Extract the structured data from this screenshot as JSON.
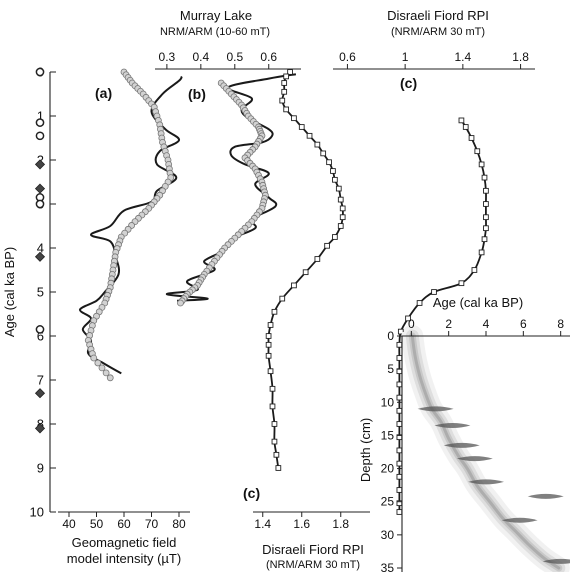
{
  "chart_data": {
    "type": "line",
    "left_axis": {
      "label": "Age (cal ka BP)",
      "range": [
        0,
        10
      ],
      "ticks": [
        "0",
        "1",
        "2",
        "3",
        "4",
        "5",
        "6",
        "7",
        "8",
        "9",
        "10"
      ],
      "inverted": true
    },
    "panels": [
      {
        "id": "a",
        "label": "(a)",
        "x_axis_position": "bottom",
        "xlabel": [
          "Geomagnetic field",
          "model intensity (µT)"
        ],
        "xlim": [
          36,
          84
        ],
        "ticks": [
          40,
          50,
          60,
          70,
          80
        ],
        "series": [
          {
            "style": "smooth",
            "color": "#1a1a1a",
            "points": [
              [
                81,
                0.1
              ],
              [
                80,
                0.2
              ],
              [
                74,
                0.5
              ],
              [
                70,
                0.9
              ],
              [
                75,
                1.3
              ],
              [
                80,
                1.55
              ],
              [
                73,
                1.8
              ],
              [
                72,
                2.1
              ],
              [
                79,
                2.4
              ],
              [
                72,
                2.7
              ],
              [
                70,
                2.95
              ],
              [
                60,
                3.15
              ],
              [
                55,
                3.5
              ],
              [
                48,
                3.7
              ],
              [
                55,
                3.85
              ],
              [
                57,
                4.2
              ],
              [
                58,
                4.6
              ],
              [
                53,
                5.0
              ],
              [
                50,
                5.2
              ],
              [
                44,
                5.4
              ],
              [
                48,
                5.6
              ],
              [
                45,
                5.85
              ],
              [
                48,
                6.1
              ],
              [
                47,
                6.4
              ],
              [
                52,
                6.6
              ],
              [
                59,
                6.85
              ]
            ]
          },
          {
            "style": "dots",
            "color": "#777777",
            "fill": "#d2d2d2",
            "points": [
              [
                60,
                0
              ],
              [
                63,
                0.25
              ],
              [
                67,
                0.5
              ],
              [
                71,
                0.8
              ],
              [
                73,
                1.2
              ],
              [
                74,
                1.6
              ],
              [
                76,
                2.0
              ],
              [
                77,
                2.4
              ],
              [
                73,
                2.8
              ],
              [
                69,
                3.1
              ],
              [
                64,
                3.4
              ],
              [
                59,
                3.75
              ],
              [
                57,
                4.1
              ],
              [
                56,
                4.5
              ],
              [
                55,
                4.9
              ],
              [
                53,
                5.25
              ],
              [
                49,
                5.65
              ],
              [
                47,
                6.1
              ],
              [
                49,
                6.5
              ],
              [
                55,
                6.95
              ]
            ]
          }
        ],
        "age_markers": {
          "circles": [
            0,
            1.15,
            1.45,
            2.85,
            3.0,
            5.85
          ],
          "diamonds": [
            2.1,
            2.65,
            4.2,
            7.3,
            8.1
          ]
        }
      },
      {
        "id": "b",
        "label": "(b)",
        "x_axis_position": "top",
        "title": "Murray Lake",
        "xlabel": "NRM/ARM (10-60 mT)",
        "xlim": [
          0.265,
          0.695
        ],
        "ticks": [
          0.3,
          0.4,
          0.5,
          0.6
        ],
        "series": [
          {
            "style": "smooth",
            "color": "#1a1a1a",
            "points": [
              [
                0.68,
                0.05
              ],
              [
                0.6,
                0.15
              ],
              [
                0.48,
                0.35
              ],
              [
                0.55,
                0.6
              ],
              [
                0.52,
                0.85
              ],
              [
                0.54,
                1.05
              ],
              [
                0.6,
                1.3
              ],
              [
                0.61,
                1.45
              ],
              [
                0.58,
                1.6
              ],
              [
                0.5,
                1.7
              ],
              [
                0.49,
                1.9
              ],
              [
                0.53,
                2.1
              ],
              [
                0.6,
                2.3
              ],
              [
                0.56,
                2.55
              ],
              [
                0.6,
                2.85
              ],
              [
                0.62,
                3.05
              ],
              [
                0.55,
                3.35
              ],
              [
                0.56,
                3.55
              ],
              [
                0.49,
                3.8
              ],
              [
                0.47,
                4.05
              ],
              [
                0.41,
                4.3
              ],
              [
                0.44,
                4.5
              ],
              [
                0.36,
                4.75
              ],
              [
                0.39,
                4.95
              ],
              [
                0.3,
                5.05
              ],
              [
                0.42,
                5.15
              ],
              [
                0.33,
                5.2
              ]
            ]
          },
          {
            "style": "dots",
            "color": "#777777",
            "fill": "#d2d2d2",
            "points": [
              [
                0.46,
                0.25
              ],
              [
                0.49,
                0.5
              ],
              [
                0.52,
                0.75
              ],
              [
                0.54,
                1.0
              ],
              [
                0.57,
                1.25
              ],
              [
                0.58,
                1.45
              ],
              [
                0.56,
                1.7
              ],
              [
                0.53,
                1.95
              ],
              [
                0.56,
                2.2
              ],
              [
                0.58,
                2.5
              ],
              [
                0.59,
                2.8
              ],
              [
                0.58,
                3.1
              ],
              [
                0.55,
                3.4
              ],
              [
                0.51,
                3.7
              ],
              [
                0.47,
                4.0
              ],
              [
                0.44,
                4.3
              ],
              [
                0.41,
                4.6
              ],
              [
                0.39,
                4.85
              ],
              [
                0.36,
                5.05
              ],
              [
                0.34,
                5.25
              ]
            ]
          }
        ]
      },
      {
        "id": "c-top",
        "label": "(c)",
        "x_axis_position": "top",
        "title": "Disraeli Fiord RPI",
        "xlabel": "(NRM/ARM 30 mT)",
        "xlim": [
          0.5,
          1.9
        ],
        "ticks": [
          0.6,
          1.0,
          1.4,
          1.8
        ],
        "series": [
          {
            "style": "line-squares",
            "color": "#1a1a1a",
            "points": [
              [
                1.39,
                1.1
              ],
              [
                1.42,
                1.25
              ],
              [
                1.46,
                1.5
              ],
              [
                1.5,
                1.8
              ],
              [
                1.53,
                2.1
              ],
              [
                1.55,
                2.4
              ],
              [
                1.56,
                2.7
              ],
              [
                1.56,
                3.0
              ],
              [
                1.56,
                3.3
              ],
              [
                1.56,
                3.55
              ],
              [
                1.55,
                3.8
              ],
              [
                1.53,
                4.1
              ],
              [
                1.48,
                4.5
              ],
              [
                1.39,
                4.8
              ],
              [
                1.2,
                5.0
              ],
              [
                1.1,
                5.25
              ],
              [
                1.02,
                5.6
              ],
              [
                0.97,
                5.9
              ],
              [
                0.96,
                6.2
              ],
              [
                0.96,
                6.5
              ],
              [
                0.96,
                6.8
              ],
              [
                0.96,
                7.1
              ],
              [
                0.96,
                7.4
              ],
              [
                0.96,
                7.7
              ],
              [
                0.96,
                8.0
              ],
              [
                0.96,
                8.3
              ],
              [
                0.96,
                8.6
              ],
              [
                0.96,
                8.9
              ],
              [
                0.96,
                9.2
              ],
              [
                0.96,
                9.5
              ],
              [
                0.96,
                9.8
              ],
              [
                0.96,
                10.0
              ]
            ]
          }
        ]
      },
      {
        "id": "c-bottom",
        "label": "(c)",
        "x_axis_position": "bottom",
        "xlabel": [
          "Disraeli Fiord RPI",
          "(NRM/ARM 30 mT)"
        ],
        "xlim": [
          1.35,
          1.95
        ],
        "ticks": [
          1.4,
          1.6,
          1.8
        ],
        "series": [
          {
            "style": "line-squares",
            "color": "#1a1a1a",
            "points": [
              [
                1.54,
                0.0
              ],
              [
                1.52,
                0.1
              ],
              [
                1.51,
                0.25
              ],
              [
                1.51,
                0.45
              ],
              [
                1.5,
                0.65
              ],
              [
                1.52,
                0.85
              ],
              [
                1.56,
                1.05
              ],
              [
                1.6,
                1.25
              ],
              [
                1.64,
                1.45
              ],
              [
                1.68,
                1.65
              ],
              [
                1.71,
                1.85
              ],
              [
                1.74,
                2.05
              ],
              [
                1.76,
                2.25
              ],
              [
                1.77,
                2.45
              ],
              [
                1.79,
                2.65
              ],
              [
                1.8,
                2.9
              ],
              [
                1.81,
                3.1
              ],
              [
                1.81,
                3.3
              ],
              [
                1.8,
                3.5
              ],
              [
                1.77,
                3.75
              ],
              [
                1.73,
                3.95
              ],
              [
                1.68,
                4.25
              ],
              [
                1.62,
                4.55
              ],
              [
                1.56,
                4.85
              ],
              [
                1.5,
                5.15
              ],
              [
                1.46,
                5.45
              ],
              [
                1.44,
                5.75
              ],
              [
                1.43,
                6.0
              ],
              [
                1.43,
                6.2
              ],
              [
                1.43,
                6.45
              ],
              [
                1.44,
                6.8
              ],
              [
                1.45,
                7.2
              ],
              [
                1.45,
                7.6
              ],
              [
                1.46,
                8.0
              ],
              [
                1.46,
                8.4
              ],
              [
                1.47,
                8.7
              ],
              [
                1.48,
                9.0
              ]
            ]
          }
        ]
      },
      {
        "id": "inset",
        "type": "heatmap",
        "title": "Age (cal ka BP)",
        "ylabel": "Depth (cm)",
        "xlim": [
          -0.5,
          8.5
        ],
        "ylim": [
          0,
          35
        ],
        "xticks": [
          0,
          2,
          4,
          6,
          8
        ],
        "yticks": [
          0,
          5,
          10,
          15,
          20,
          25,
          30,
          35
        ],
        "cloud": [
          [
            0.05,
            0
          ],
          [
            0.2,
            3
          ],
          [
            0.45,
            6
          ],
          [
            0.8,
            9
          ],
          [
            1.1,
            11
          ],
          [
            1.6,
            13
          ],
          [
            2.0,
            15.5
          ],
          [
            2.5,
            18
          ],
          [
            3.0,
            20
          ],
          [
            3.5,
            22.5
          ],
          [
            4.2,
            25
          ],
          [
            4.9,
            27.5
          ],
          [
            5.6,
            29.5
          ],
          [
            6.3,
            31.5
          ],
          [
            7.1,
            33.5
          ],
          [
            7.9,
            35
          ]
        ],
        "dated_samples": [
          [
            1.3,
            11
          ],
          [
            2.2,
            13.5
          ],
          [
            2.7,
            16.5
          ],
          [
            3.4,
            18.5
          ],
          [
            4.0,
            22
          ],
          [
            5.8,
            27.8
          ],
          [
            7.2,
            24.2
          ],
          [
            8.0,
            34
          ]
        ]
      }
    ]
  }
}
